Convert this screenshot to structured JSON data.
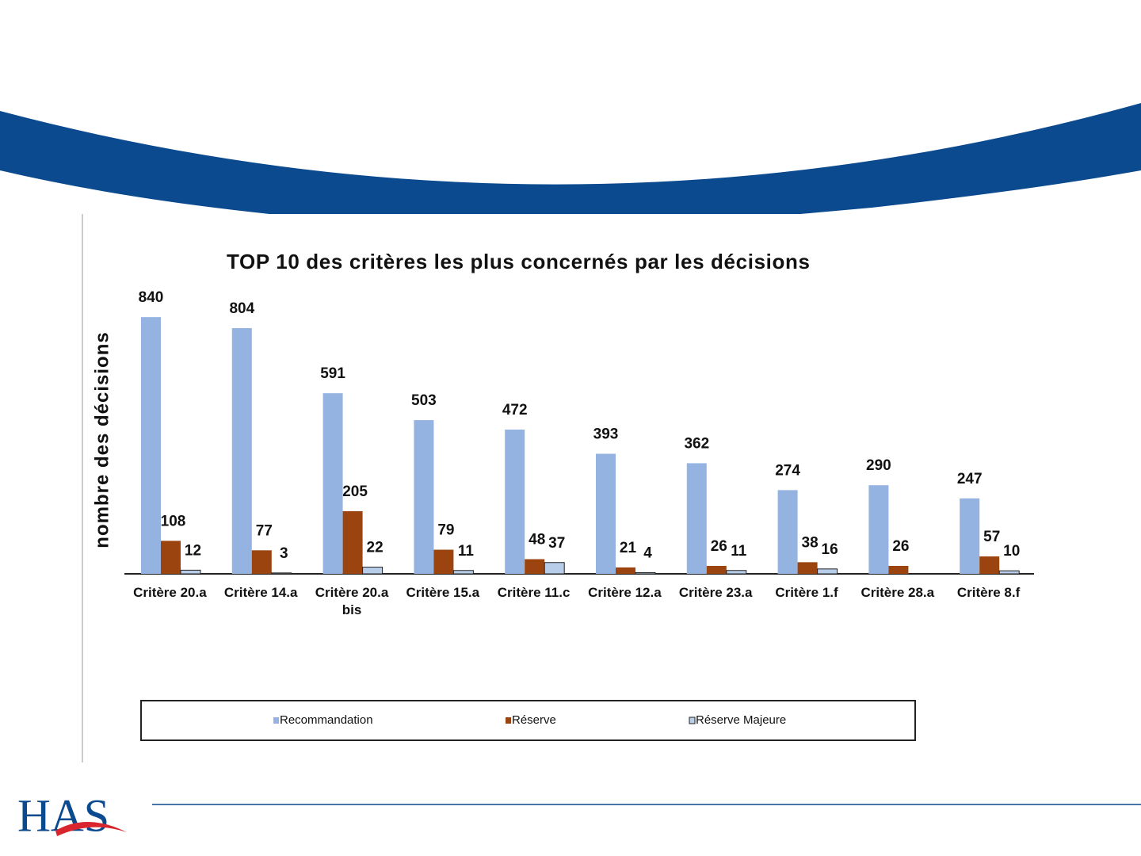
{
  "logo": "HAS",
  "chart_data": {
    "type": "bar",
    "title": "TOP 10 des critères les plus concernés par les décisions",
    "y_label": "nombre  des décisions",
    "categories": [
      "Critère 20.a",
      "Critère 14.a",
      "Critère 20.a bis",
      "Critère 15.a",
      "Critère 11.c",
      "Critère 12.a",
      "Critère 23.a",
      "Critère 1.f",
      "Critère 28.a",
      "Critère 8.f"
    ],
    "series": [
      {
        "name": "Recommandation",
        "color": "#95b3e0",
        "values": [
          840,
          804,
          591,
          503,
          472,
          393,
          362,
          274,
          290,
          247
        ]
      },
      {
        "name": "Réserve",
        "color": "#9c4410",
        "values": [
          108,
          77,
          205,
          79,
          48,
          21,
          26,
          38,
          26,
          57
        ]
      },
      {
        "name": "Réserve Majeure",
        "color": "#b7cde9",
        "values": [
          12,
          3,
          22,
          11,
          37,
          4,
          11,
          16,
          null,
          10
        ]
      }
    ],
    "ylim": [
      0,
      900
    ],
    "legend": "bottom"
  }
}
